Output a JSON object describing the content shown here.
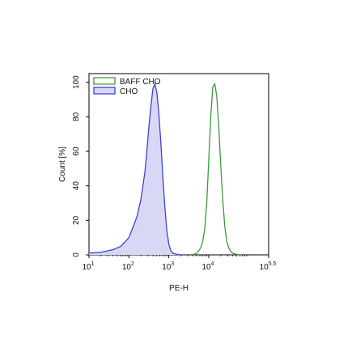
{
  "chart_data": {
    "type": "area",
    "title": "",
    "xlabel": "PE-H",
    "ylabel": "Count [%]",
    "x_scale": "log10",
    "xlim_log10": [
      1,
      5.5
    ],
    "ylim": [
      0,
      105
    ],
    "x_ticks": [
      {
        "base": "10",
        "exp": "1",
        "log": 1
      },
      {
        "base": "10",
        "exp": "2",
        "log": 2
      },
      {
        "base": "10",
        "exp": "3",
        "log": 3
      },
      {
        "base": "10",
        "exp": "4",
        "log": 4
      },
      {
        "base": "10",
        "exp": "5.5",
        "log": 5.5
      }
    ],
    "y_ticks": [
      "0",
      "20",
      "40",
      "60",
      "80",
      "100"
    ],
    "grid": false,
    "legend_position": "top-left",
    "series": [
      {
        "name": "BAFF CHO",
        "color": "#3a9a3a",
        "fill": false,
        "x_log10": [
          3.6,
          3.7,
          3.8,
          3.85,
          3.9,
          3.95,
          4.0,
          4.05,
          4.1,
          4.15,
          4.2,
          4.25,
          4.3,
          4.35,
          4.4,
          4.45,
          4.5,
          4.55,
          4.6,
          4.7,
          4.8
        ],
        "y": [
          0,
          1,
          4,
          8,
          15,
          30,
          55,
          80,
          97,
          99,
          92,
          75,
          52,
          32,
          17,
          8,
          4,
          2,
          1,
          0.3,
          0
        ]
      },
      {
        "name": "CHO",
        "color": "#4040d8",
        "fill": true,
        "fill_color": "#d8d8f6",
        "x_log10": [
          1.0,
          1.3,
          1.6,
          1.8,
          2.0,
          2.1,
          2.2,
          2.3,
          2.4,
          2.45,
          2.5,
          2.55,
          2.6,
          2.65,
          2.7,
          2.75,
          2.8,
          2.85,
          2.9,
          2.95,
          3.0,
          3.05,
          3.1,
          3.2,
          3.3
        ],
        "y": [
          1,
          1.5,
          3,
          5,
          10,
          16,
          22,
          32,
          48,
          60,
          74,
          86,
          96,
          99,
          94,
          82,
          65,
          45,
          28,
          14,
          6,
          2.5,
          1,
          0.3,
          0
        ]
      }
    ]
  }
}
